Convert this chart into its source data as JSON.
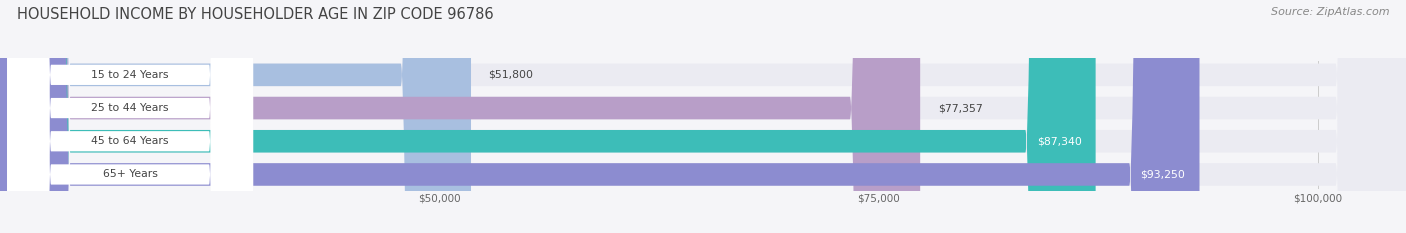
{
  "title": "HOUSEHOLD INCOME BY HOUSEHOLDER AGE IN ZIP CODE 96786",
  "source": "Source: ZipAtlas.com",
  "categories": [
    "15 to 24 Years",
    "25 to 44 Years",
    "45 to 64 Years",
    "65+ Years"
  ],
  "values": [
    51800,
    77357,
    87340,
    93250
  ],
  "bar_colors": [
    "#a8bfe0",
    "#b89ec8",
    "#3dbdb8",
    "#8c8cd0"
  ],
  "bar_labels": [
    "$51,800",
    "$77,357",
    "$87,340",
    "$93,250"
  ],
  "label_inside": [
    false,
    false,
    true,
    true
  ],
  "xlim": [
    25000,
    105000
  ],
  "xstart": 25000,
  "xticks": [
    50000,
    75000,
    100000
  ],
  "xtick_labels": [
    "$50,000",
    "$75,000",
    "$100,000"
  ],
  "background_color": "#f5f5f8",
  "bar_bg_color": "#ebebf2",
  "title_fontsize": 10.5,
  "source_fontsize": 8.0,
  "bar_height": 0.68
}
